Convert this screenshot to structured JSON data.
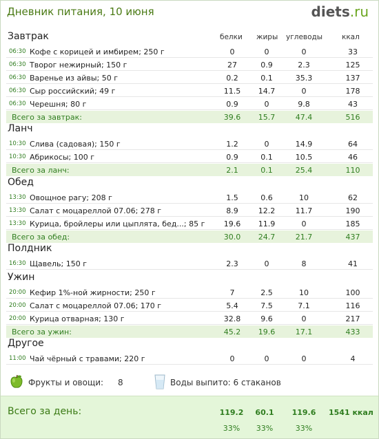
{
  "header": {
    "title": "Дневник питания, 10 июня",
    "logo_main": "diets",
    "logo_suffix": ".ru"
  },
  "columns": {
    "protein": "белки",
    "fat": "жиры",
    "carbs": "углеводы",
    "kcal": "ккал"
  },
  "meals": [
    {
      "title": "Завтрак",
      "items": [
        {
          "time": "06:30",
          "food": "Кофе с корицей и имбирем; 250 г",
          "protein": "0",
          "fat": "0",
          "carbs": "0",
          "kcal": "33"
        },
        {
          "time": "06:30",
          "food": "Творог нежирный; 150 г",
          "protein": "27",
          "fat": "0.9",
          "carbs": "2.3",
          "kcal": "125"
        },
        {
          "time": "06:30",
          "food": "Варенье из айвы; 50 г",
          "protein": "0.2",
          "fat": "0.1",
          "carbs": "35.3",
          "kcal": "137"
        },
        {
          "time": "06:30",
          "food": "Сыр российский; 49 г",
          "protein": "11.5",
          "fat": "14.7",
          "carbs": "0",
          "kcal": "178"
        },
        {
          "time": "06:30",
          "food": "Черешня; 80 г",
          "protein": "0.9",
          "fat": "0",
          "carbs": "9.8",
          "kcal": "43"
        }
      ],
      "total": {
        "label": "Всего за завтрак:",
        "protein": "39.6",
        "fat": "15.7",
        "carbs": "47.4",
        "kcal": "516"
      }
    },
    {
      "title": "Ланч",
      "items": [
        {
          "time": "10:30",
          "food": "Слива (садовая); 150 г",
          "protein": "1.2",
          "fat": "0",
          "carbs": "14.9",
          "kcal": "64"
        },
        {
          "time": "10:30",
          "food": "Абрикосы; 100 г",
          "protein": "0.9",
          "fat": "0.1",
          "carbs": "10.5",
          "kcal": "46"
        }
      ],
      "total": {
        "label": "Всего за ланч:",
        "protein": "2.1",
        "fat": "0.1",
        "carbs": "25.4",
        "kcal": "110"
      }
    },
    {
      "title": "Обед",
      "items": [
        {
          "time": "13:30",
          "food": "Овощное рагу; 208 г",
          "protein": "1.5",
          "fat": "0.6",
          "carbs": "10",
          "kcal": "62"
        },
        {
          "time": "13:30",
          "food": "Салат с моцареллой 07.06; 278 г",
          "protein": "8.9",
          "fat": "12.2",
          "carbs": "11.7",
          "kcal": "190"
        },
        {
          "time": "13:30",
          "food": "Курица, бройлеры или цыплята, бед...; 85 г",
          "protein": "19.6",
          "fat": "11.9",
          "carbs": "0",
          "kcal": "185"
        }
      ],
      "total": {
        "label": "Всего за обед:",
        "protein": "30.0",
        "fat": "24.7",
        "carbs": "21.7",
        "kcal": "437"
      }
    },
    {
      "title": "Полдник",
      "items": [
        {
          "time": "16:30",
          "food": "Щавель; 150 г",
          "protein": "2.3",
          "fat": "0",
          "carbs": "8",
          "kcal": "41"
        }
      ],
      "total": null
    },
    {
      "title": "Ужин",
      "items": [
        {
          "time": "20:00",
          "food": "Кефир 1%-ной жирности; 250 г",
          "protein": "7",
          "fat": "2.5",
          "carbs": "10",
          "kcal": "100"
        },
        {
          "time": "20:00",
          "food": "Салат с моцареллой 07.06; 170 г",
          "protein": "5.4",
          "fat": "7.5",
          "carbs": "7.1",
          "kcal": "116"
        },
        {
          "time": "20:00",
          "food": "Курица отварная; 130 г",
          "protein": "32.8",
          "fat": "9.6",
          "carbs": "0",
          "kcal": "217"
        }
      ],
      "total": {
        "label": "Всего за ужин:",
        "protein": "45.2",
        "fat": "19.6",
        "carbs": "17.1",
        "kcal": "433"
      }
    },
    {
      "title": "Другое",
      "items": [
        {
          "time": "11:00",
          "food": "Чай чёрный с травами; 220 г",
          "protein": "0",
          "fat": "0",
          "carbs": "0",
          "kcal": "4"
        }
      ],
      "total": null
    }
  ],
  "extras": {
    "fruit_icon": "apple-icon",
    "fruit_label": "Фрукты и овощи:",
    "fruit_count": "8",
    "water_icon": "glass-icon",
    "water_label": "Воды выпито: 6 стаканов"
  },
  "summary": {
    "label": "Всего за день:",
    "protein": "119.2",
    "fat": "60.1",
    "carbs": "119.6",
    "kcal": "1541 ккал",
    "protein_pct": "33%",
    "fat_pct": "33%",
    "carbs_pct": "33%"
  },
  "colors": {
    "accent_green": "#2f7d1f",
    "total_row_bg": "#e7f3dc",
    "summary_bg": "#e4f6d9"
  }
}
